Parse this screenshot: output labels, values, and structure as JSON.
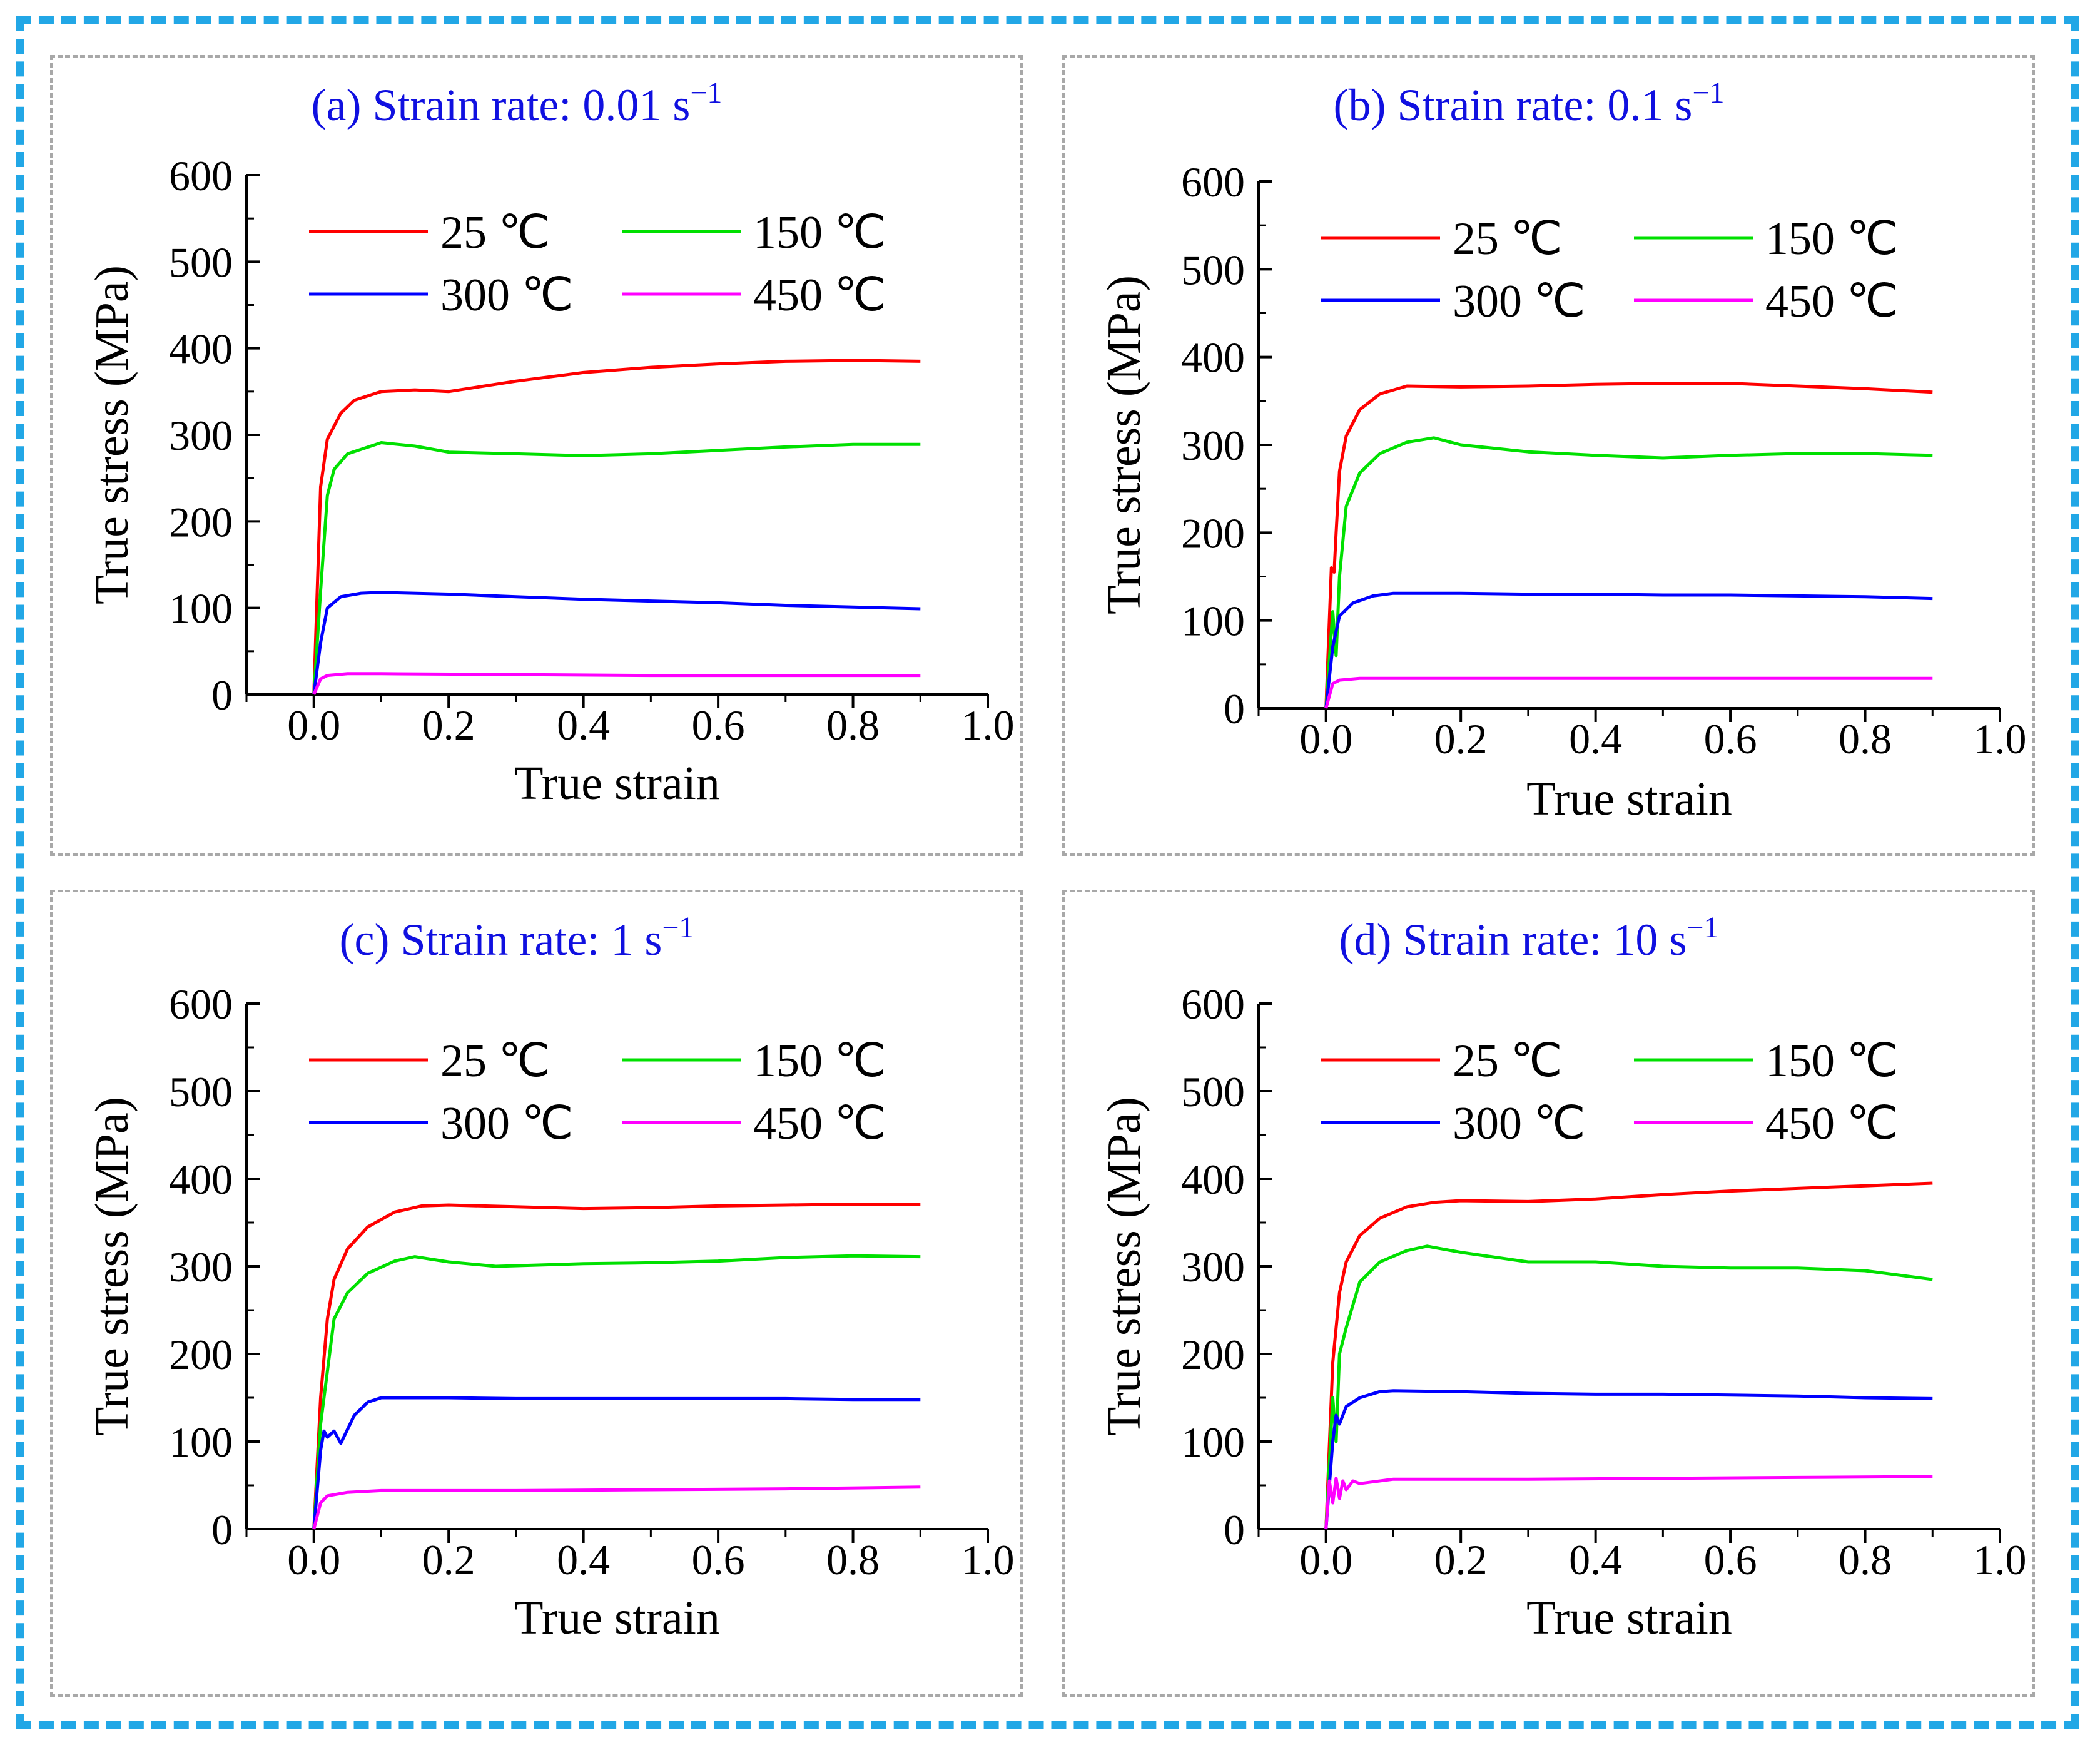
{
  "figure": {
    "frame_color": "#22a7e6",
    "panel_border_color": "#a8a8a8"
  },
  "chart_data": [
    {
      "type": "line",
      "title": "(a) Strain rate: 0.01 s",
      "title_superscript": "−1",
      "xlabel": "True strain",
      "ylabel": "True stress (MPa)",
      "xlim": [
        -0.1,
        1.0
      ],
      "ylim": [
        0,
        600
      ],
      "xticks": [
        0.0,
        0.2,
        0.4,
        0.6,
        0.8,
        1.0
      ],
      "xtick_labels": [
        "0.0",
        "0.2",
        "0.4",
        "0.6",
        "0.8",
        "1.0"
      ],
      "yticks": [
        0,
        100,
        200,
        300,
        400,
        500,
        600
      ],
      "ytick_labels": [
        "0",
        "100",
        "200",
        "300",
        "400",
        "500",
        "600"
      ],
      "legend": "top, two columns",
      "series": [
        {
          "name": "25 ℃",
          "color": "#ff0000",
          "x": [
            0,
            0.01,
            0.02,
            0.04,
            0.06,
            0.1,
            0.15,
            0.2,
            0.3,
            0.4,
            0.5,
            0.6,
            0.7,
            0.8,
            0.9
          ],
          "y": [
            0,
            240,
            295,
            325,
            340,
            350,
            352,
            350,
            362,
            372,
            378,
            382,
            385,
            386,
            385
          ]
        },
        {
          "name": "150 ℃",
          "color": "#00e000",
          "x": [
            0,
            0.01,
            0.02,
            0.03,
            0.05,
            0.1,
            0.15,
            0.2,
            0.3,
            0.4,
            0.5,
            0.6,
            0.7,
            0.8,
            0.9
          ],
          "y": [
            0,
            120,
            230,
            260,
            278,
            291,
            287,
            280,
            278,
            276,
            278,
            282,
            286,
            289,
            289
          ]
        },
        {
          "name": "300 ℃",
          "color": "#0000ff",
          "x": [
            0,
            0.01,
            0.02,
            0.04,
            0.07,
            0.1,
            0.2,
            0.3,
            0.4,
            0.5,
            0.6,
            0.7,
            0.8,
            0.9
          ],
          "y": [
            0,
            60,
            100,
            113,
            117,
            118,
            116,
            113,
            110,
            108,
            106,
            103,
            101,
            99
          ]
        },
        {
          "name": "450 ℃",
          "color": "#ff00ff",
          "x": [
            0,
            0.01,
            0.02,
            0.05,
            0.1,
            0.3,
            0.5,
            0.7,
            0.9
          ],
          "y": [
            0,
            18,
            22,
            24,
            24,
            23,
            22,
            22,
            22
          ]
        }
      ]
    },
    {
      "type": "line",
      "title": "(b) Strain rate: 0.1 s",
      "title_superscript": "−1",
      "xlabel": "True strain",
      "ylabel": "True stress (MPa)",
      "xlim": [
        -0.1,
        1.0
      ],
      "ylim": [
        0,
        600
      ],
      "xticks": [
        0.0,
        0.2,
        0.4,
        0.6,
        0.8,
        1.0
      ],
      "xtick_labels": [
        "0.0",
        "0.2",
        "0.4",
        "0.6",
        "0.8",
        "1.0"
      ],
      "yticks": [
        0,
        100,
        200,
        300,
        400,
        500,
        600
      ],
      "ytick_labels": [
        "0",
        "100",
        "200",
        "300",
        "400",
        "500",
        "600"
      ],
      "legend": "top, two columns",
      "series": [
        {
          "name": "25 ℃",
          "color": "#ff0000",
          "x": [
            0,
            0.008,
            0.012,
            0.015,
            0.02,
            0.03,
            0.05,
            0.08,
            0.12,
            0.2,
            0.3,
            0.4,
            0.5,
            0.6,
            0.7,
            0.8,
            0.9
          ],
          "y": [
            0,
            160,
            155,
            200,
            270,
            310,
            340,
            358,
            367,
            366,
            367,
            369,
            370,
            370,
            367,
            364,
            360
          ]
        },
        {
          "name": "150 ℃",
          "color": "#00e000",
          "x": [
            0,
            0.01,
            0.015,
            0.02,
            0.03,
            0.05,
            0.08,
            0.12,
            0.16,
            0.2,
            0.3,
            0.4,
            0.5,
            0.6,
            0.7,
            0.8,
            0.9
          ],
          "y": [
            0,
            110,
            60,
            150,
            230,
            268,
            290,
            303,
            308,
            300,
            292,
            288,
            285,
            288,
            290,
            290,
            288
          ]
        },
        {
          "name": "300 ℃",
          "color": "#0000ff",
          "x": [
            0,
            0.01,
            0.02,
            0.04,
            0.07,
            0.1,
            0.2,
            0.3,
            0.4,
            0.5,
            0.6,
            0.7,
            0.8,
            0.9
          ],
          "y": [
            0,
            70,
            105,
            120,
            128,
            131,
            131,
            130,
            130,
            129,
            129,
            128,
            127,
            125
          ]
        },
        {
          "name": "450 ℃",
          "color": "#ff00ff",
          "x": [
            0,
            0.01,
            0.02,
            0.05,
            0.1,
            0.3,
            0.5,
            0.7,
            0.9
          ],
          "y": [
            0,
            28,
            32,
            34,
            34,
            34,
            34,
            34,
            34
          ]
        }
      ]
    },
    {
      "type": "line",
      "title": "(c) Strain rate: 1 s",
      "title_superscript": "−1",
      "xlabel": "True strain",
      "ylabel": "True stress (MPa)",
      "xlim": [
        -0.1,
        1.0
      ],
      "ylim": [
        0,
        600
      ],
      "xticks": [
        0.0,
        0.2,
        0.4,
        0.6,
        0.8,
        1.0
      ],
      "xtick_labels": [
        "0.0",
        "0.2",
        "0.4",
        "0.6",
        "0.8",
        "1.0"
      ],
      "yticks": [
        0,
        100,
        200,
        300,
        400,
        500,
        600
      ],
      "ytick_labels": [
        "0",
        "100",
        "200",
        "300",
        "400",
        "500",
        "600"
      ],
      "legend": "top, two columns",
      "series": [
        {
          "name": "25 ℃",
          "color": "#ff0000",
          "x": [
            0,
            0.01,
            0.02,
            0.03,
            0.05,
            0.08,
            0.12,
            0.16,
            0.2,
            0.3,
            0.4,
            0.5,
            0.6,
            0.7,
            0.8,
            0.9
          ],
          "y": [
            0,
            150,
            240,
            285,
            320,
            345,
            362,
            369,
            370,
            368,
            366,
            367,
            369,
            370,
            371,
            371
          ]
        },
        {
          "name": "150 ℃",
          "color": "#00e000",
          "x": [
            0,
            0.01,
            0.02,
            0.03,
            0.05,
            0.08,
            0.12,
            0.15,
            0.2,
            0.27,
            0.4,
            0.5,
            0.6,
            0.7,
            0.8,
            0.9
          ],
          "y": [
            0,
            120,
            180,
            240,
            270,
            292,
            306,
            311,
            305,
            300,
            303,
            304,
            306,
            310,
            312,
            311
          ]
        },
        {
          "name": "300 ℃",
          "color": "#0000ff",
          "x": [
            0,
            0.01,
            0.015,
            0.02,
            0.03,
            0.04,
            0.06,
            0.08,
            0.1,
            0.2,
            0.3,
            0.4,
            0.5,
            0.6,
            0.7,
            0.8,
            0.9
          ],
          "y": [
            0,
            90,
            112,
            105,
            112,
            98,
            130,
            145,
            150,
            150,
            149,
            149,
            149,
            149,
            149,
            148,
            148
          ]
        },
        {
          "name": "450 ℃",
          "color": "#ff00ff",
          "x": [
            0,
            0.01,
            0.02,
            0.05,
            0.1,
            0.3,
            0.5,
            0.7,
            0.9
          ],
          "y": [
            0,
            30,
            38,
            42,
            44,
            44,
            45,
            46,
            48
          ]
        }
      ]
    },
    {
      "type": "line",
      "title": "(d) Strain rate: 10 s",
      "title_superscript": "−1",
      "xlabel": "True strain",
      "ylabel": "True stress (MPa)",
      "xlim": [
        -0.1,
        1.0
      ],
      "ylim": [
        0,
        600
      ],
      "xticks": [
        0.0,
        0.2,
        0.4,
        0.6,
        0.8,
        1.0
      ],
      "xtick_labels": [
        "0.0",
        "0.2",
        "0.4",
        "0.6",
        "0.8",
        "1.0"
      ],
      "yticks": [
        0,
        100,
        200,
        300,
        400,
        500,
        600
      ],
      "ytick_labels": [
        "0",
        "100",
        "200",
        "300",
        "400",
        "500",
        "600"
      ],
      "legend": "top, two columns",
      "series": [
        {
          "name": "25 ℃",
          "color": "#ff0000",
          "x": [
            0,
            0.01,
            0.02,
            0.03,
            0.05,
            0.08,
            0.12,
            0.16,
            0.2,
            0.3,
            0.4,
            0.5,
            0.6,
            0.7,
            0.8,
            0.9
          ],
          "y": [
            0,
            190,
            270,
            305,
            335,
            355,
            368,
            373,
            375,
            374,
            377,
            382,
            386,
            389,
            392,
            395
          ]
        },
        {
          "name": "150 ℃",
          "color": "#00e000",
          "x": [
            0,
            0.01,
            0.015,
            0.02,
            0.03,
            0.05,
            0.08,
            0.12,
            0.15,
            0.2,
            0.3,
            0.4,
            0.5,
            0.6,
            0.7,
            0.8,
            0.9
          ],
          "y": [
            0,
            150,
            100,
            200,
            230,
            282,
            305,
            318,
            323,
            316,
            305,
            305,
            300,
            298,
            298,
            295,
            285
          ]
        },
        {
          "name": "300 ℃",
          "color": "#0000ff",
          "x": [
            0,
            0.01,
            0.015,
            0.02,
            0.03,
            0.05,
            0.08,
            0.1,
            0.2,
            0.3,
            0.4,
            0.5,
            0.6,
            0.7,
            0.8,
            0.9
          ],
          "y": [
            0,
            100,
            130,
            120,
            140,
            150,
            157,
            158,
            157,
            155,
            154,
            154,
            153,
            152,
            150,
            149
          ]
        },
        {
          "name": "450 ℃",
          "color": "#ff00ff",
          "x": [
            0,
            0.005,
            0.01,
            0.015,
            0.02,
            0.025,
            0.03,
            0.04,
            0.05,
            0.1,
            0.3,
            0.5,
            0.7,
            0.9
          ],
          "y": [
            0,
            55,
            30,
            58,
            35,
            55,
            45,
            55,
            52,
            57,
            57,
            58,
            59,
            60
          ]
        }
      ]
    }
  ]
}
